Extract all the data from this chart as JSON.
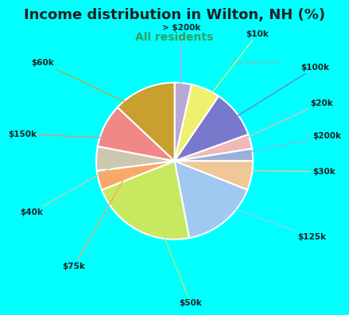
{
  "title": "Income distribution in Wilton, NH (%)",
  "subtitle": "All residents",
  "watermark": "City-Data.com",
  "slices": [
    {
      "label": "> $200k",
      "value": 3.5,
      "color": "#b8a8d8"
    },
    {
      "label": "$10k",
      "value": 6.0,
      "color": "#f0f070"
    },
    {
      "label": "$100k",
      "value": 10.0,
      "color": "#7878cc"
    },
    {
      "label": "$20k",
      "value": 3.0,
      "color": "#f0b8b8"
    },
    {
      "label": "$200k",
      "value": 2.5,
      "color": "#9ab0d8"
    },
    {
      "label": "$30k",
      "value": 6.0,
      "color": "#f0c898"
    },
    {
      "label": "$125k",
      "value": 16.0,
      "color": "#a0c8f0"
    },
    {
      "label": "$50k",
      "value": 22.0,
      "color": "#c8e860"
    },
    {
      "label": "$75k",
      "value": 4.0,
      "color": "#f8a868"
    },
    {
      "label": "$40k",
      "value": 5.0,
      "color": "#ccc8b0"
    },
    {
      "label": "$150k",
      "value": 9.0,
      "color": "#f08888"
    },
    {
      "label": "$60k",
      "value": 13.0,
      "color": "#c8a030"
    }
  ],
  "title_bg": "#00ffff",
  "chart_bg": "#d8f5e8",
  "title_color": "#202020",
  "subtitle_color": "#30a060",
  "watermark_color": "#90b8b0",
  "title_fontsize": 13,
  "subtitle_fontsize": 10,
  "border_color": "#00ffff"
}
